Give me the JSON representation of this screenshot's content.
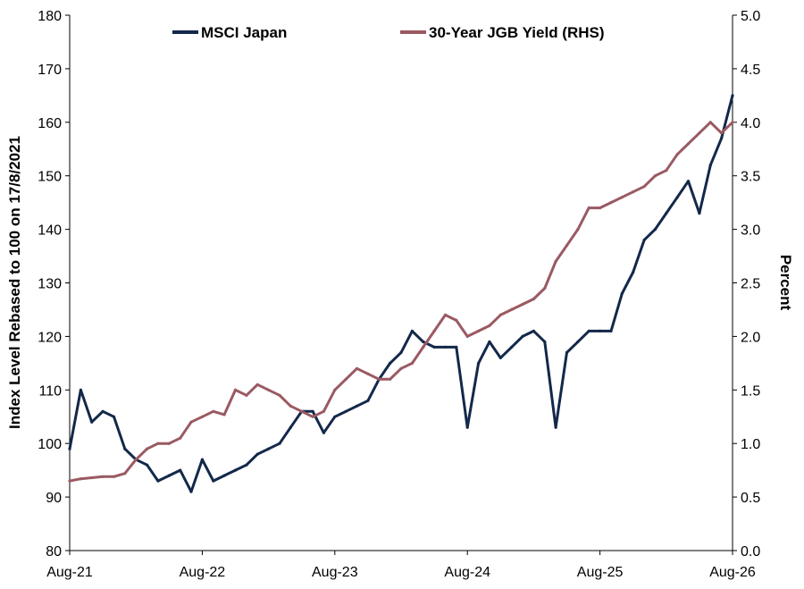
{
  "chart_data": {
    "type": "line",
    "title": "",
    "xlabel": "",
    "ylabel": "Index Level Rebased to 100 on 17/8/2021",
    "y2label": "Percent",
    "x_ticks": [
      "Aug-21",
      "Aug-22",
      "Aug-23",
      "Aug-24",
      "Aug-25",
      "Aug-26"
    ],
    "xlim": [
      "2021-08",
      "2026-08"
    ],
    "ylim": [
      80,
      180
    ],
    "y_ticks": [
      "80",
      "90",
      "100",
      "110",
      "120",
      "130",
      "140",
      "150",
      "160",
      "170",
      "180"
    ],
    "y2lim": [
      0,
      5
    ],
    "y2_ticks": [
      "0.0",
      "0.5",
      "1.0",
      "1.5",
      "2.0",
      "2.5",
      "3.0",
      "3.5",
      "4.0",
      "4.5",
      "5.0"
    ],
    "grid": false,
    "legend_position": "top",
    "series": [
      {
        "name": "MSCI Japan",
        "axis": "left",
        "color": "#13284a",
        "x": [
          "2021-08",
          "2021-09",
          "2021-10",
          "2021-11",
          "2021-12",
          "2022-01",
          "2022-02",
          "2022-03",
          "2022-04",
          "2022-05",
          "2022-06",
          "2022-07",
          "2022-08",
          "2022-09",
          "2022-10",
          "2022-11",
          "2022-12",
          "2023-01",
          "2023-02",
          "2023-03",
          "2023-04",
          "2023-05",
          "2023-06",
          "2023-07",
          "2023-08",
          "2023-09",
          "2023-10",
          "2023-11",
          "2023-12",
          "2024-01",
          "2024-02",
          "2024-03",
          "2024-04",
          "2024-05",
          "2024-06",
          "2024-07",
          "2024-08",
          "2024-09",
          "2024-10",
          "2024-11",
          "2024-12",
          "2025-01",
          "2025-02",
          "2025-03",
          "2025-04",
          "2025-05",
          "2025-06",
          "2025-07",
          "2025-08",
          "2025-09",
          "2025-10",
          "2025-11",
          "2025-12",
          "2026-01",
          "2026-02",
          "2026-03",
          "2026-04",
          "2026-05",
          "2026-06",
          "2026-07",
          "2026-08"
        ],
        "values": [
          99,
          110,
          104,
          106,
          105,
          99,
          97,
          96,
          93,
          94,
          95,
          91,
          97,
          93,
          94,
          95,
          96,
          98,
          99,
          100,
          103,
          106,
          106,
          102,
          105,
          106,
          107,
          108,
          112,
          115,
          117,
          121,
          119,
          118,
          118,
          118,
          103,
          115,
          119,
          116,
          118,
          120,
          121,
          119,
          103,
          117,
          119,
          121,
          121,
          121,
          128,
          132,
          138,
          140,
          143,
          146,
          149,
          143,
          152,
          157,
          165
        ]
      },
      {
        "name": "30-Year JGB Yield (RHS)",
        "axis": "right",
        "color": "#9a5a63",
        "x": [
          "2021-08",
          "2021-09",
          "2021-10",
          "2021-11",
          "2021-12",
          "2022-01",
          "2022-02",
          "2022-03",
          "2022-04",
          "2022-05",
          "2022-06",
          "2022-07",
          "2022-08",
          "2022-09",
          "2022-10",
          "2022-11",
          "2022-12",
          "2023-01",
          "2023-02",
          "2023-03",
          "2023-04",
          "2023-05",
          "2023-06",
          "2023-07",
          "2023-08",
          "2023-09",
          "2023-10",
          "2023-11",
          "2023-12",
          "2024-01",
          "2024-02",
          "2024-03",
          "2024-04",
          "2024-05",
          "2024-06",
          "2024-07",
          "2024-08",
          "2024-09",
          "2024-10",
          "2024-11",
          "2024-12",
          "2025-01",
          "2025-02",
          "2025-03",
          "2025-04",
          "2025-05",
          "2025-06",
          "2025-07",
          "2025-08",
          "2025-09",
          "2025-10",
          "2025-11",
          "2025-12",
          "2026-01",
          "2026-02",
          "2026-03",
          "2026-04",
          "2026-05",
          "2026-06",
          "2026-07",
          "2026-08"
        ],
        "values": [
          0.65,
          0.67,
          0.68,
          0.69,
          0.69,
          0.72,
          0.85,
          0.95,
          1.0,
          1.0,
          1.05,
          1.2,
          1.25,
          1.3,
          1.27,
          1.5,
          1.45,
          1.55,
          1.5,
          1.45,
          1.35,
          1.3,
          1.25,
          1.3,
          1.5,
          1.6,
          1.7,
          1.65,
          1.6,
          1.6,
          1.7,
          1.75,
          1.9,
          2.05,
          2.2,
          2.15,
          2.0,
          2.05,
          2.1,
          2.2,
          2.25,
          2.3,
          2.35,
          2.45,
          2.7,
          2.85,
          3.0,
          3.2,
          3.2,
          3.25,
          3.3,
          3.35,
          3.4,
          3.5,
          3.55,
          3.7,
          3.8,
          3.9,
          4.0,
          3.9,
          4.0
        ]
      }
    ]
  }
}
